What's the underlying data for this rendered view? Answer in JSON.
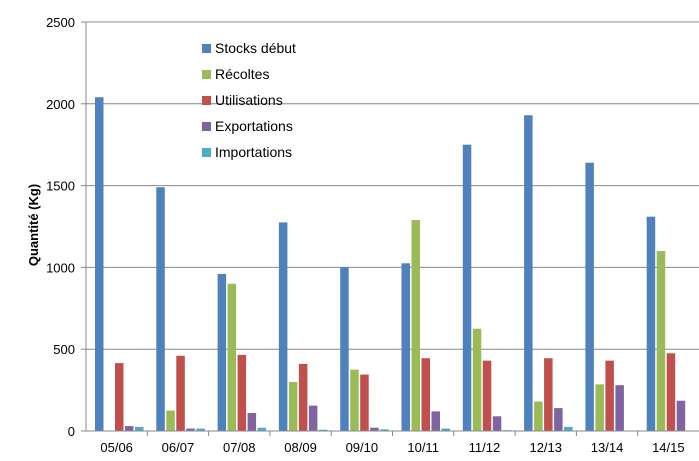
{
  "chart_data": {
    "type": "bar",
    "ylabel": "Quantité (Kg)",
    "xlabel": "",
    "ylim": [
      0,
      2500
    ],
    "yticks": [
      0,
      500,
      1000,
      1500,
      2000,
      2500
    ],
    "grid": "horizontal",
    "legend_position": "top-left",
    "categories": [
      "05/06",
      "06/07",
      "07/08",
      "08/09",
      "09/10",
      "10/11",
      "11/12",
      "12/13",
      "13/14",
      "14/15"
    ],
    "series": [
      {
        "name": "Stocks début",
        "color": "#4F81BD",
        "values": [
          2040,
          1490,
          960,
          1275,
          1000,
          1025,
          1750,
          1930,
          1640,
          1310
        ]
      },
      {
        "name": "Récoltes",
        "color": "#9BBB59",
        "values": [
          0,
          125,
          900,
          300,
          375,
          1290,
          625,
          180,
          285,
          1100
        ]
      },
      {
        "name": "Utilisations",
        "color": "#C0504D",
        "values": [
          415,
          460,
          465,
          410,
          345,
          445,
          430,
          445,
          430,
          475
        ]
      },
      {
        "name": "Exportations",
        "color": "#8064A2",
        "values": [
          30,
          15,
          110,
          155,
          20,
          120,
          90,
          140,
          280,
          185
        ]
      },
      {
        "name": "Importations",
        "color": "#4BACC6",
        "values": [
          25,
          15,
          20,
          8,
          10,
          15,
          5,
          25,
          0,
          0
        ]
      }
    ]
  }
}
